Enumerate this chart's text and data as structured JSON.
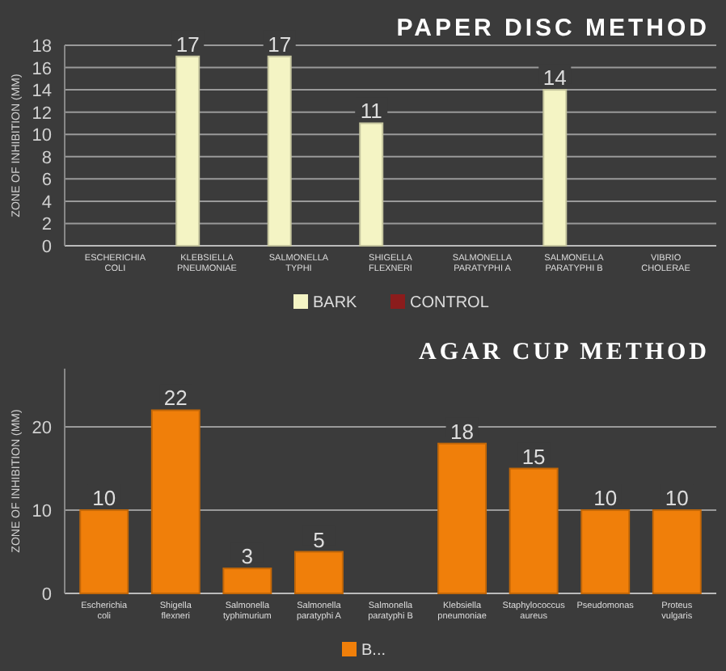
{
  "chart_data": [
    {
      "type": "bar",
      "title": "PAPER DISC METHOD",
      "ylabel": "ZONE OF INHIBITION (MM)",
      "categories": [
        "ESCHERICHIA COLI",
        "KLEBSIELLA PNEUMONIAE",
        "SALMONELLA TYPHI",
        "SHIGELLA FLEXNERI",
        "SALMONELLA PARATYPHI A",
        "SALMONELLA PARATYPHI B",
        "VIBRIO CHOLERAE"
      ],
      "series": [
        {
          "name": "BARK",
          "color": "#f4f4c4",
          "values": [
            null,
            17,
            17,
            11,
            null,
            14,
            null
          ]
        },
        {
          "name": "CONTROL",
          "color": "#8b1c1c",
          "values": [
            null,
            null,
            null,
            null,
            null,
            null,
            null
          ]
        }
      ],
      "ylim": [
        0,
        18
      ],
      "yticks": [
        0,
        2,
        4,
        6,
        8,
        10,
        12,
        14,
        16,
        18
      ],
      "grid": "y",
      "legend": "bottom",
      "data_labels": true
    },
    {
      "type": "bar",
      "title": "AGAR CUP METHOD",
      "ylabel": "ZONE OF INHIBITION (MM)",
      "categories": [
        "Escherichia coli",
        "Shigella flexneri",
        "Salmonella typhimurium",
        "Salmonella paratyphi A",
        "Salmonella paratyphi B",
        "Klebsiella pneumoniae",
        "Staphylococcus aureus",
        "Pseudomonas",
        "Proteus vulgaris"
      ],
      "series": [
        {
          "name": "B...",
          "color": "#f07f0a",
          "values": [
            10,
            22,
            3,
            5,
            null,
            18,
            15,
            10,
            10
          ]
        }
      ],
      "ylim": [
        0,
        27
      ],
      "yticks": [
        0,
        10,
        20
      ],
      "grid": "y",
      "legend": "bottom",
      "data_labels": true
    }
  ]
}
